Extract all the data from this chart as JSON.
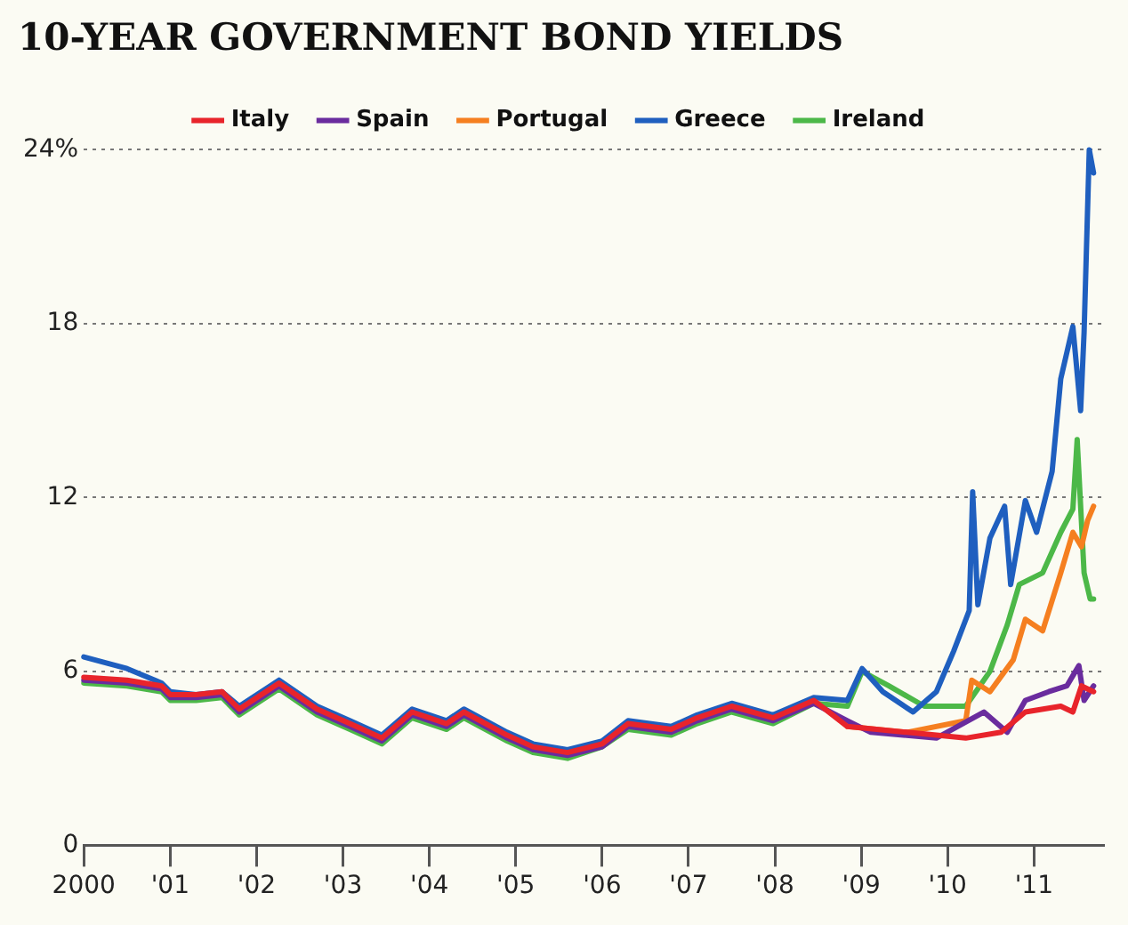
{
  "chart_data": {
    "type": "line",
    "title": "10-YEAR GOVERNMENT BOND YIELDS",
    "xlim": [
      2000,
      2011.8
    ],
    "xticks": [
      {
        "value": 2000,
        "label": "2000"
      },
      {
        "value": 2001,
        "label": "'01"
      },
      {
        "value": 2002,
        "label": "'02"
      },
      {
        "value": 2003,
        "label": "'03"
      },
      {
        "value": 2004,
        "label": "'04"
      },
      {
        "value": 2005,
        "label": "'05"
      },
      {
        "value": 2006,
        "label": "'06"
      },
      {
        "value": 2007,
        "label": "'07"
      },
      {
        "value": 2008,
        "label": "'08"
      },
      {
        "value": 2009,
        "label": "'09"
      },
      {
        "value": 2010,
        "label": "'10"
      },
      {
        "value": 2011,
        "label": "'11"
      }
    ],
    "ylim": [
      0,
      24
    ],
    "yticks": [
      0,
      6,
      12,
      18,
      {
        "value": 24,
        "label": "24%"
      }
    ],
    "grid": "y",
    "legend": "top",
    "marker": "none",
    "line_style": "solid",
    "series": [
      {
        "name": "Italy",
        "color": "#e8242b",
        "x": [
          2000,
          2000.5,
          2000.9,
          2001.0,
          2001.3,
          2001.6,
          2001.8,
          2002.26,
          2002.7,
          2003.08,
          2003.45,
          2003.8,
          2004.2,
          2004.4,
          2004.9,
          2005.2,
          2005.6,
          2006.0,
          2006.3,
          2006.8,
          2007.1,
          2007.5,
          2007.98,
          2008.45,
          2008.84,
          2009.53,
          2010.21,
          2010.62,
          2010.9,
          2011.31,
          2011.45,
          2011.55,
          2011.69
        ],
        "values": [
          5.8,
          5.7,
          5.5,
          5.2,
          5.2,
          5.3,
          4.7,
          5.6,
          4.7,
          4.2,
          3.7,
          4.6,
          4.2,
          4.6,
          3.8,
          3.4,
          3.2,
          3.5,
          4.2,
          4.0,
          4.4,
          4.8,
          4.4,
          5.0,
          4.1,
          3.9,
          3.7,
          3.9,
          4.6,
          4.8,
          4.6,
          5.5,
          5.3
        ]
      },
      {
        "name": "Spain",
        "color": "#6a2c9e",
        "x": [
          2000,
          2000.5,
          2000.9,
          2001.0,
          2001.3,
          2001.6,
          2001.8,
          2002.26,
          2002.7,
          2003.08,
          2003.45,
          2003.8,
          2004.2,
          2004.4,
          2004.9,
          2005.2,
          2005.6,
          2006.0,
          2006.3,
          2006.8,
          2007.1,
          2007.5,
          2007.98,
          2008.45,
          2008.84,
          2009.11,
          2009.87,
          2010.42,
          2010.69,
          2010.9,
          2011.17,
          2011.38,
          2011.52,
          2011.58,
          2011.69
        ],
        "values": [
          5.7,
          5.6,
          5.4,
          5.1,
          5.1,
          5.2,
          4.6,
          5.5,
          4.6,
          4.1,
          3.6,
          4.5,
          4.1,
          4.5,
          3.7,
          3.3,
          3.1,
          3.4,
          4.1,
          3.9,
          4.3,
          4.7,
          4.3,
          4.9,
          4.3,
          3.9,
          3.7,
          4.6,
          3.9,
          5.0,
          5.3,
          5.5,
          6.2,
          5.0,
          5.5
        ]
      },
      {
        "name": "Portugal",
        "color": "#f57f20",
        "x": [
          2008.84,
          2009.53,
          2010.21,
          2010.28,
          2010.49,
          2010.76,
          2010.9,
          2011.1,
          2011.31,
          2011.45,
          2011.55,
          2011.62,
          2011.69
        ],
        "values": [
          4.1,
          3.9,
          4.3,
          5.7,
          5.3,
          6.4,
          7.8,
          7.4,
          9.4,
          10.8,
          10.3,
          11.2,
          11.7
        ]
      },
      {
        "name": "Greece",
        "color": "#1f5fbf",
        "x": [
          2000,
          2000.5,
          2000.9,
          2001.0,
          2001.3,
          2001.6,
          2001.8,
          2002.26,
          2002.7,
          2003.08,
          2003.45,
          2003.8,
          2004.2,
          2004.4,
          2004.9,
          2005.2,
          2005.6,
          2006.0,
          2006.3,
          2006.8,
          2007.1,
          2007.5,
          2007.98,
          2008.45,
          2008.84,
          2009.01,
          2009.25,
          2009.6,
          2009.87,
          2010.07,
          2010.25,
          2010.29,
          2010.35,
          2010.49,
          2010.66,
          2010.73,
          2010.9,
          2011.03,
          2011.21,
          2011.31,
          2011.45,
          2011.54,
          2011.58,
          2011.64,
          2011.69
        ],
        "values": [
          6.5,
          6.1,
          5.6,
          5.3,
          5.2,
          5.3,
          4.8,
          5.7,
          4.8,
          4.3,
          3.8,
          4.7,
          4.3,
          4.7,
          3.9,
          3.5,
          3.3,
          3.6,
          4.3,
          4.1,
          4.5,
          4.9,
          4.5,
          5.1,
          5.0,
          6.1,
          5.3,
          4.6,
          5.3,
          6.7,
          8.1,
          12.2,
          8.3,
          10.6,
          11.7,
          9.0,
          11.9,
          10.8,
          12.9,
          16.1,
          17.9,
          15.0,
          17.7,
          24.0,
          23.2
        ]
      },
      {
        "name": "Ireland",
        "color": "#4cb848",
        "x": [
          2000,
          2000.5,
          2000.9,
          2001.0,
          2001.3,
          2001.6,
          2001.8,
          2002.26,
          2002.7,
          2003.08,
          2003.45,
          2003.8,
          2004.2,
          2004.4,
          2004.9,
          2005.2,
          2005.6,
          2006.0,
          2006.3,
          2006.8,
          2007.1,
          2007.5,
          2007.98,
          2008.45,
          2008.84,
          2009.01,
          2009.32,
          2009.73,
          2010.21,
          2010.49,
          2010.69,
          2010.83,
          2011.1,
          2011.31,
          2011.45,
          2011.5,
          2011.58,
          2011.65,
          2011.69
        ],
        "values": [
          5.6,
          5.5,
          5.3,
          5.0,
          5.0,
          5.1,
          4.5,
          5.4,
          4.5,
          4.0,
          3.5,
          4.4,
          4.0,
          4.4,
          3.6,
          3.2,
          3.0,
          3.4,
          4.0,
          3.8,
          4.2,
          4.6,
          4.2,
          4.9,
          4.8,
          6.0,
          5.5,
          4.8,
          4.8,
          6.0,
          7.6,
          9.0,
          9.4,
          10.8,
          11.6,
          14.0,
          9.4,
          8.5,
          8.5
        ]
      }
    ]
  }
}
